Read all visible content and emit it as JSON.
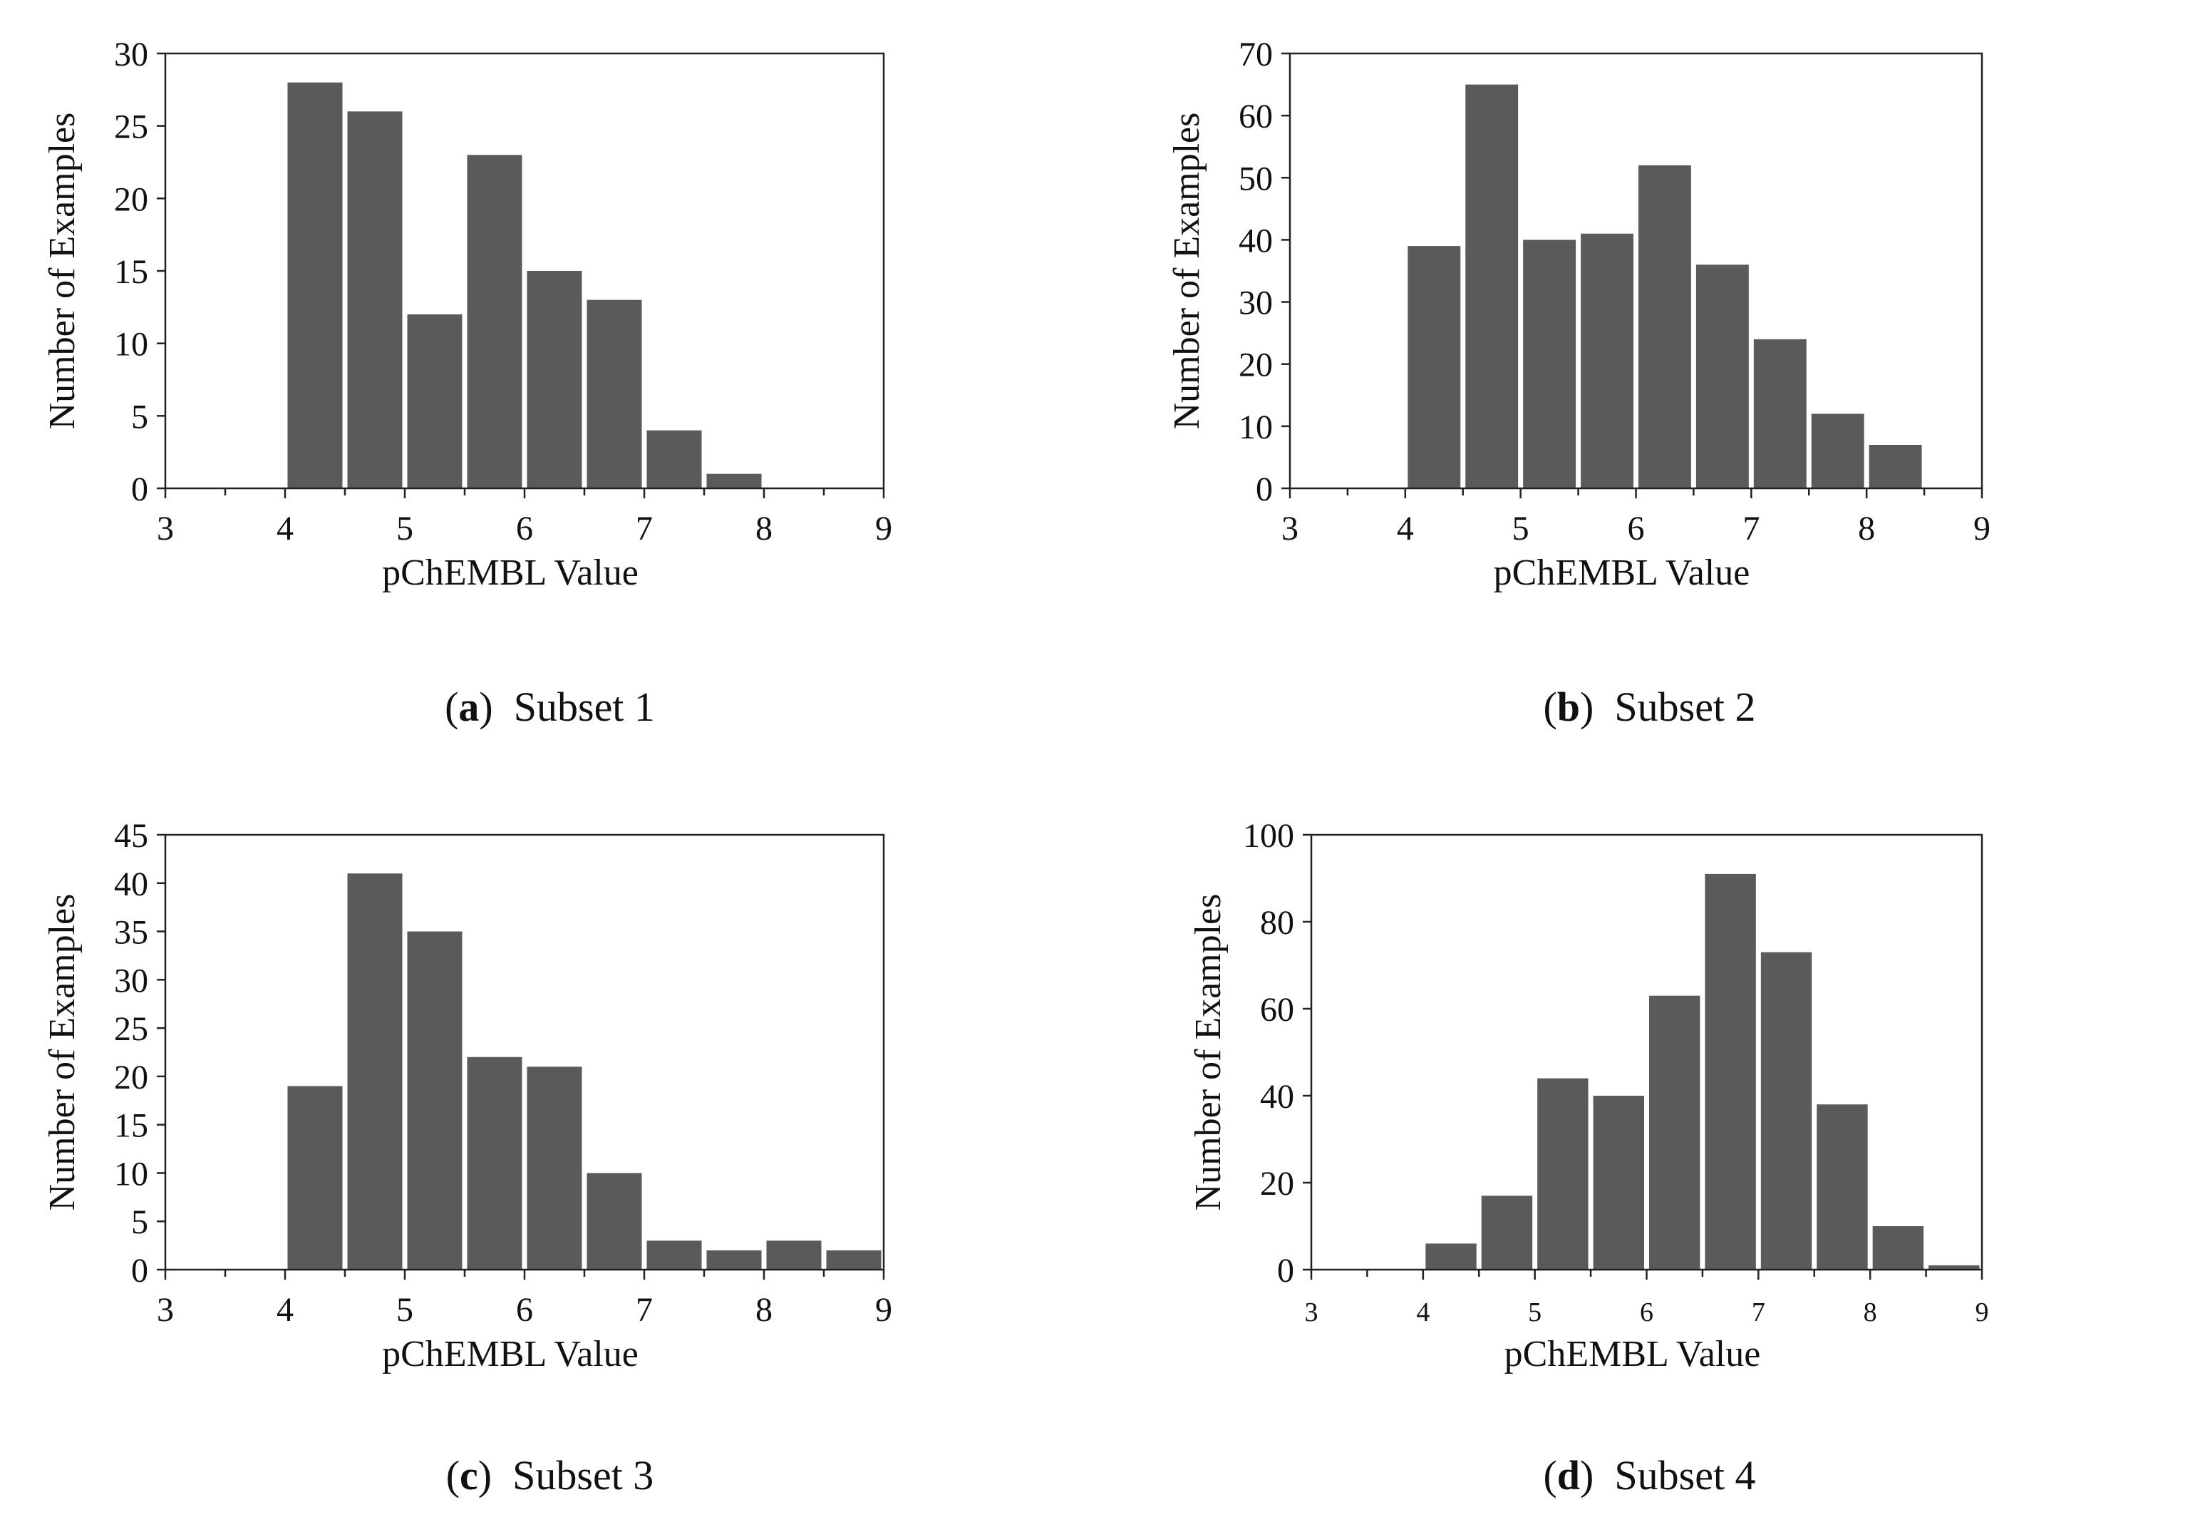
{
  "colors": {
    "bar": "#5a5a5a",
    "axis": "#222222",
    "text": "#111111"
  },
  "chart_data": [
    {
      "type": "bar",
      "title": "",
      "caption_letter": "a",
      "caption_text": "Subset 1",
      "xlabel": "pChEMBL Value",
      "ylabel": "Number of Examples",
      "xlim": [
        3,
        9
      ],
      "ylim": [
        0,
        30
      ],
      "yticks": [
        0,
        5,
        10,
        15,
        20,
        25,
        30
      ],
      "xticks": [
        3,
        4,
        5,
        6,
        7,
        8,
        9
      ],
      "bin_width": 0.5,
      "bins": [
        4.0,
        4.5,
        5.0,
        5.5,
        6.0,
        6.5,
        7.0,
        7.5
      ],
      "values": [
        28,
        26,
        12,
        23,
        15,
        13,
        4,
        1
      ]
    },
    {
      "type": "bar",
      "title": "",
      "caption_letter": "b",
      "caption_text": "Subset 2",
      "xlabel": "pChEMBL Value",
      "ylabel": "Number of Examples",
      "xlim": [
        3,
        9
      ],
      "ylim": [
        0,
        70
      ],
      "yticks": [
        0,
        10,
        20,
        30,
        40,
        50,
        60,
        70
      ],
      "xticks": [
        3,
        4,
        5,
        6,
        7,
        8,
        9
      ],
      "bin_width": 0.5,
      "bins": [
        4.0,
        4.5,
        5.0,
        5.5,
        6.0,
        6.5,
        7.0,
        7.5,
        8.0
      ],
      "values": [
        39,
        65,
        40,
        41,
        52,
        36,
        24,
        12,
        7
      ]
    },
    {
      "type": "bar",
      "title": "",
      "caption_letter": "c",
      "caption_text": "Subset 3",
      "xlabel": "pChEMBL Value",
      "ylabel": "Number of Examples",
      "xlim": [
        3,
        9
      ],
      "ylim": [
        0,
        45
      ],
      "yticks": [
        0,
        5,
        10,
        15,
        20,
        25,
        30,
        35,
        40,
        45
      ],
      "xticks": [
        3,
        4,
        5,
        6,
        7,
        8,
        9
      ],
      "bin_width": 0.5,
      "bins": [
        4.0,
        4.5,
        5.0,
        5.5,
        6.0,
        6.5,
        7.0,
        7.5,
        8.0,
        8.5
      ],
      "values": [
        19,
        41,
        35,
        22,
        21,
        10,
        3,
        2,
        3,
        2
      ]
    },
    {
      "type": "bar",
      "title": "",
      "caption_letter": "d",
      "caption_text": "Subset 4",
      "xlabel": "pChEMBL Value",
      "ylabel": "Number of Examples",
      "xlim": [
        3,
        9
      ],
      "ylim": [
        0,
        100
      ],
      "yticks": [
        0,
        20,
        40,
        60,
        80,
        100
      ],
      "xticks": [
        3,
        4,
        5,
        6,
        7,
        8,
        9
      ],
      "bin_width": 0.5,
      "bins": [
        4.0,
        4.5,
        5.0,
        5.5,
        6.0,
        6.5,
        7.0,
        7.5,
        8.0,
        8.5
      ],
      "values": [
        6,
        17,
        44,
        40,
        63,
        91,
        73,
        38,
        10,
        1
      ]
    }
  ]
}
